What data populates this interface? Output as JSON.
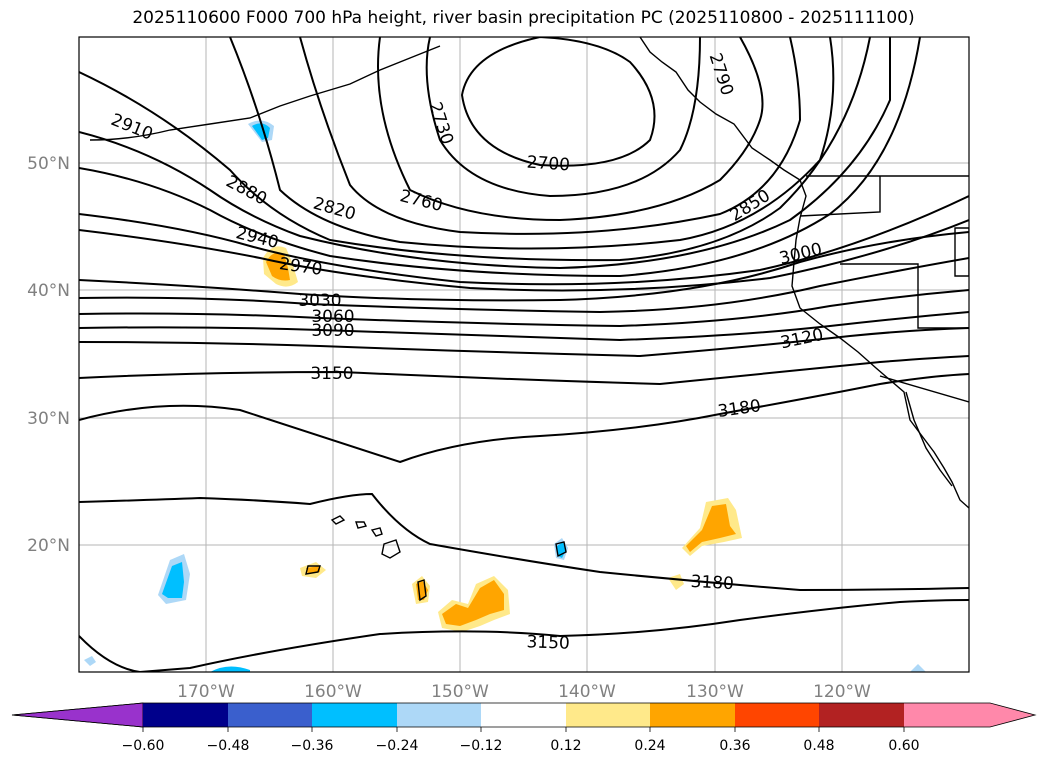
{
  "title": "2025110600 F000 700 hPa height, river basin precipitation PC (2025110800 - 2025111100)",
  "lat_labels": [
    "50°N",
    "40°N",
    "30°N",
    "20°N"
  ],
  "lon_labels": [
    "170°W",
    "160°W",
    "150°W",
    "140°W",
    "130°W",
    "120°W"
  ],
  "contour_labels": [
    "2910",
    "2880",
    "2940",
    "2970",
    "3030",
    "3060",
    "3090",
    "3150",
    "2730",
    "2700",
    "2760",
    "2820",
    "2790",
    "2850",
    "3000",
    "3120",
    "3180",
    "3180",
    "3150"
  ],
  "colorbar": {
    "ticks": [
      "−0.60",
      "−0.48",
      "−0.36",
      "−0.24",
      "−0.12",
      "0.12",
      "0.24",
      "0.36",
      "0.48",
      "0.60"
    ],
    "colors": [
      "#9932cc",
      "#00008b",
      "#3a5fcd",
      "#00bfff",
      "#add8f7",
      "#ffffff",
      "#ffe98a",
      "#ffa500",
      "#ff4500",
      "#b22222",
      "#ff88aa",
      "#ff88aa"
    ]
  }
}
